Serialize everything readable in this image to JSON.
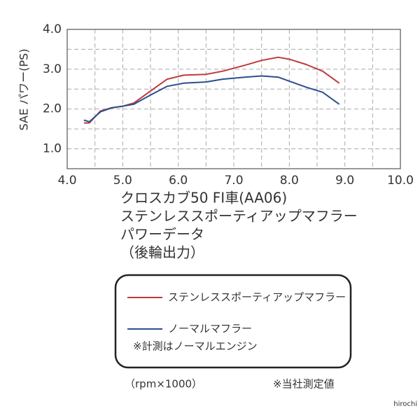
{
  "chart_data": {
    "type": "line",
    "y_label": "SAE パワー(PS)",
    "title_lines": [
      "クロスカブ50 FI車(AA06)",
      "ステンレススポーティアップマフラー",
      "パワーデータ",
      "（後輪出力）"
    ],
    "x_unit": "（rpm×1000）",
    "source_note": "※当社測定値",
    "legend_note": "※計測はノーマルエンジン",
    "watermark": "hirochi",
    "x": [
      4.3,
      4.4,
      4.6,
      4.8,
      5.0,
      5.2,
      5.5,
      5.8,
      6.1,
      6.5,
      6.8,
      7.2,
      7.5,
      7.8,
      8.0,
      8.3,
      8.6,
      8.9
    ],
    "series": [
      {
        "name": "ステンレススポーティアップマフラー",
        "color": "#c0393f",
        "values": [
          1.65,
          1.65,
          1.95,
          2.03,
          2.07,
          2.15,
          2.45,
          2.75,
          2.85,
          2.87,
          2.95,
          3.1,
          3.22,
          3.3,
          3.25,
          3.12,
          2.95,
          2.65
        ]
      },
      {
        "name": "ノーマルマフラー",
        "color": "#2a4f8f",
        "values": [
          1.72,
          1.68,
          1.93,
          2.03,
          2.07,
          2.12,
          2.35,
          2.57,
          2.65,
          2.68,
          2.75,
          2.8,
          2.83,
          2.8,
          2.7,
          2.55,
          2.42,
          2.12
        ]
      }
    ],
    "xlim": [
      4,
      10
    ],
    "ylim": [
      0.5,
      4
    ],
    "xticks": [
      {
        "value": 4,
        "label": "4.0"
      },
      {
        "value": 5,
        "label": "5.0"
      },
      {
        "value": 6,
        "label": "6.0"
      },
      {
        "value": 7,
        "label": "7.0"
      },
      {
        "value": 8,
        "label": "8.0"
      },
      {
        "value": 9,
        "label": "9.0"
      },
      {
        "value": 10,
        "label": "10.0"
      }
    ],
    "yticks": [
      {
        "value": 1,
        "label": "1.0"
      },
      {
        "value": 2,
        "label": "2.0"
      },
      {
        "value": 3,
        "label": "3.0"
      },
      {
        "value": 4,
        "label": "4.0"
      }
    ],
    "minor_xticks": [
      4.5,
      5.5,
      6.5,
      7.5,
      8.5,
      9.5
    ],
    "minor_yticks": [
      1.5,
      2.5,
      3.5
    ],
    "grid": true
  }
}
